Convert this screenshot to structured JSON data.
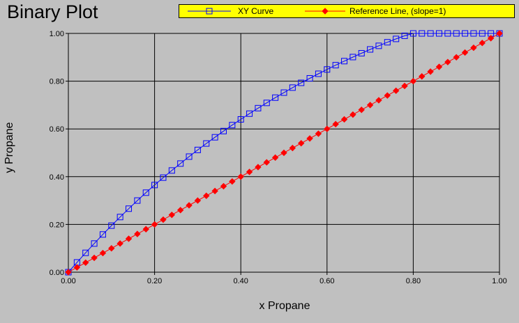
{
  "chart_data": {
    "type": "line",
    "title": "Binary Plot",
    "xlabel": "x Propane",
    "ylabel": "y Propane",
    "xlim": [
      0,
      1
    ],
    "ylim": [
      0,
      1
    ],
    "grid": true,
    "legend_position": "top",
    "x_ticks": [
      "0.00",
      "0.20",
      "0.40",
      "0.60",
      "0.80",
      "1.00"
    ],
    "y_ticks": [
      "0.00",
      "0.20",
      "0.40",
      "0.60",
      "0.80",
      "1.00"
    ],
    "series": [
      {
        "name": "XY Curve",
        "color": "#0000ff",
        "marker": "open-square",
        "x": [
          0.0,
          0.02,
          0.04,
          0.06,
          0.08,
          0.1,
          0.12,
          0.14,
          0.16,
          0.18,
          0.2,
          0.22,
          0.24,
          0.26,
          0.28,
          0.3,
          0.32,
          0.34,
          0.36,
          0.38,
          0.4,
          0.42,
          0.44,
          0.46,
          0.48,
          0.5,
          0.52,
          0.54,
          0.56,
          0.58,
          0.6,
          0.62,
          0.64,
          0.66,
          0.68,
          0.7,
          0.72,
          0.74,
          0.76,
          0.78,
          0.8,
          0.82,
          0.84,
          0.86,
          0.88,
          0.9,
          0.92,
          0.94,
          0.96,
          0.98,
          1.0
        ],
        "y": [
          0.0,
          0.041,
          0.081,
          0.12,
          0.158,
          0.195,
          0.231,
          0.266,
          0.3,
          0.333,
          0.365,
          0.396,
          0.426,
          0.455,
          0.484,
          0.512,
          0.539,
          0.565,
          0.591,
          0.616,
          0.64,
          0.664,
          0.687,
          0.709,
          0.731,
          0.752,
          0.773,
          0.793,
          0.812,
          0.831,
          0.849,
          0.867,
          0.884,
          0.901,
          0.917,
          0.933,
          0.948,
          0.963,
          0.977,
          0.99,
          1.0,
          1.0,
          1.0,
          1.0,
          1.0,
          1.0,
          1.0,
          1.0,
          1.0,
          1.0,
          1.0
        ]
      },
      {
        "name": "Reference Line, (slope=1)",
        "color": "#ff0000",
        "marker": "filled-diamond",
        "x": [
          0.0,
          0.02,
          0.04,
          0.06,
          0.08,
          0.1,
          0.12,
          0.14,
          0.16,
          0.18,
          0.2,
          0.22,
          0.24,
          0.26,
          0.28,
          0.3,
          0.32,
          0.34,
          0.36,
          0.38,
          0.4,
          0.42,
          0.44,
          0.46,
          0.48,
          0.5,
          0.52,
          0.54,
          0.56,
          0.58,
          0.6,
          0.62,
          0.64,
          0.66,
          0.68,
          0.7,
          0.72,
          0.74,
          0.76,
          0.78,
          0.8,
          0.82,
          0.84,
          0.86,
          0.88,
          0.9,
          0.92,
          0.94,
          0.96,
          0.98,
          1.0
        ],
        "y": [
          0.0,
          0.02,
          0.04,
          0.06,
          0.08,
          0.1,
          0.12,
          0.14,
          0.16,
          0.18,
          0.2,
          0.22,
          0.24,
          0.26,
          0.28,
          0.3,
          0.32,
          0.34,
          0.36,
          0.38,
          0.4,
          0.42,
          0.44,
          0.46,
          0.48,
          0.5,
          0.52,
          0.54,
          0.56,
          0.58,
          0.6,
          0.62,
          0.64,
          0.66,
          0.68,
          0.7,
          0.72,
          0.74,
          0.76,
          0.78,
          0.8,
          0.82,
          0.84,
          0.86,
          0.88,
          0.9,
          0.92,
          0.94,
          0.96,
          0.98,
          1.0
        ]
      }
    ]
  }
}
